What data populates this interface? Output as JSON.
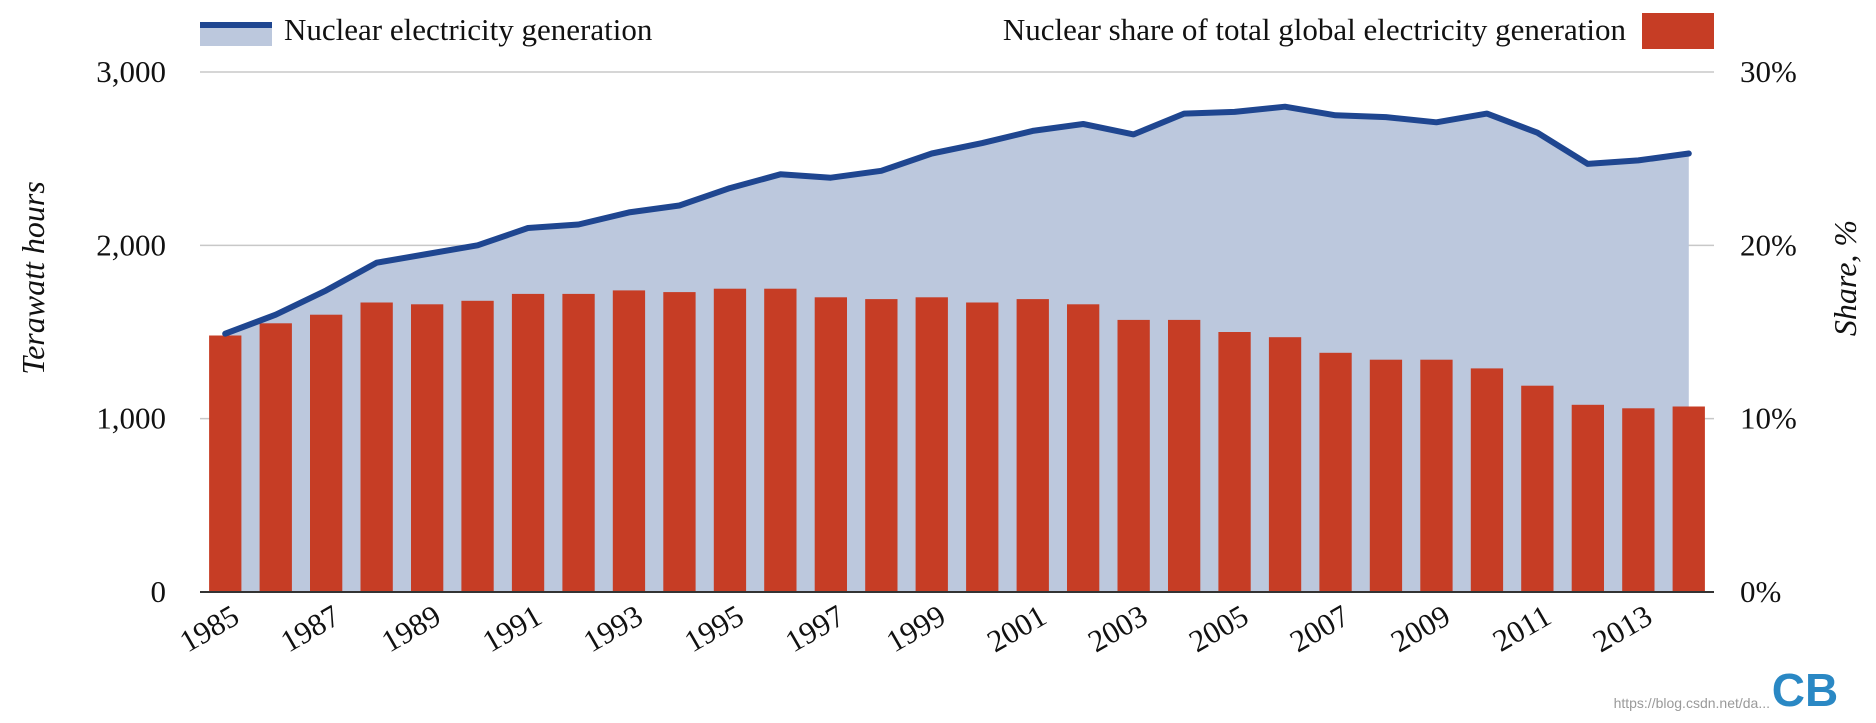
{
  "chart_data": {
    "type": "bar+area",
    "categories": [
      "1985",
      "1986",
      "1987",
      "1988",
      "1989",
      "1990",
      "1991",
      "1992",
      "1993",
      "1994",
      "1995",
      "1996",
      "1997",
      "1998",
      "1999",
      "2000",
      "2001",
      "2002",
      "2003",
      "2004",
      "2005",
      "2006",
      "2007",
      "2008",
      "2009",
      "2010",
      "2011",
      "2012",
      "2013",
      "2014"
    ],
    "x_tick_labels": [
      "1985",
      "1987",
      "1989",
      "1991",
      "1993",
      "1995",
      "1997",
      "1999",
      "2001",
      "2003",
      "2005",
      "2007",
      "2009",
      "2011",
      "2013"
    ],
    "series": [
      {
        "name": "Nuclear electricity generation",
        "type": "area",
        "axis": "left",
        "line_color": "#1f4690",
        "fill_color": "#bcc8dd",
        "values": [
          1490,
          1600,
          1740,
          1900,
          1950,
          2000,
          2100,
          2120,
          2190,
          2230,
          2330,
          2410,
          2390,
          2430,
          2530,
          2590,
          2660,
          2700,
          2640,
          2760,
          2770,
          2800,
          2750,
          2740,
          2710,
          2760,
          2650,
          2470,
          2490,
          2530
        ]
      },
      {
        "name": "Nuclear share of total global electricity generation",
        "type": "bar",
        "axis": "right",
        "color": "#c63d25",
        "values": [
          14.8,
          15.5,
          16.0,
          16.7,
          16.6,
          16.8,
          17.2,
          17.2,
          17.4,
          17.3,
          17.5,
          17.5,
          17.0,
          16.9,
          17.0,
          16.7,
          16.9,
          16.6,
          15.7,
          15.7,
          15.0,
          14.7,
          13.8,
          13.4,
          13.4,
          12.9,
          11.9,
          10.8,
          10.6,
          10.7
        ]
      }
    ],
    "y_left": {
      "label": "Terawatt hours",
      "range": [
        0,
        3000
      ],
      "ticks": [
        "0",
        "1,000",
        "2,000",
        "3,000"
      ]
    },
    "y_right": {
      "label": "Share, %",
      "range": [
        0,
        30
      ],
      "ticks": [
        "0%",
        "10%",
        "20%",
        "30%"
      ]
    },
    "grid": true
  },
  "legend": {
    "line_label": "Nuclear electricity generation",
    "bar_label": "Nuclear share of total global electricity generation"
  },
  "logo_text": "CB",
  "watermark": "https://blog.csdn.net/da..."
}
